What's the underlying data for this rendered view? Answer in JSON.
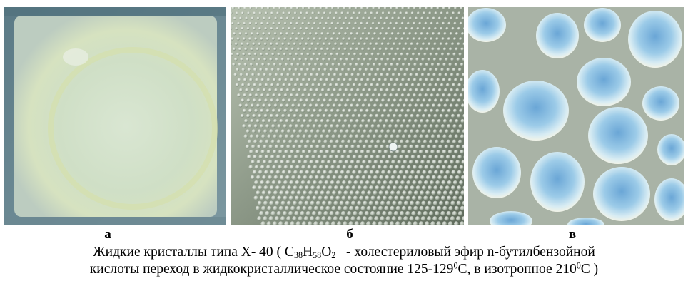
{
  "figure": {
    "panels": [
      {
        "id": "a",
        "label": "а",
        "description": "uniform-texture"
      },
      {
        "id": "b",
        "label": "б",
        "description": "droplet-texture"
      },
      {
        "id": "c",
        "label": "в",
        "description": "large-domain-texture"
      }
    ],
    "caption": {
      "line1": {
        "prefix": "Жидкие кристаллы типа Х- 40 ( C",
        "sub1": "38",
        "h": "H",
        "sub2": "58",
        "o": "O",
        "sub3": "2",
        "suffix": "   - холестериловый эфир n-бутилбензойной"
      },
      "line2": {
        "prefix": "кислоты переход в жидкокристаллическое состояние 125-129",
        "deg1": "0",
        "mid": "C, в изотропное 210",
        "deg2": "0",
        "suffix": "C )"
      }
    },
    "colors": {
      "panel_a_base": "#cfdcc4",
      "panel_b_base": "#8f9b8a",
      "panel_c_base": "#a9b3a6",
      "domain_blue": "#8cc3e6"
    }
  }
}
